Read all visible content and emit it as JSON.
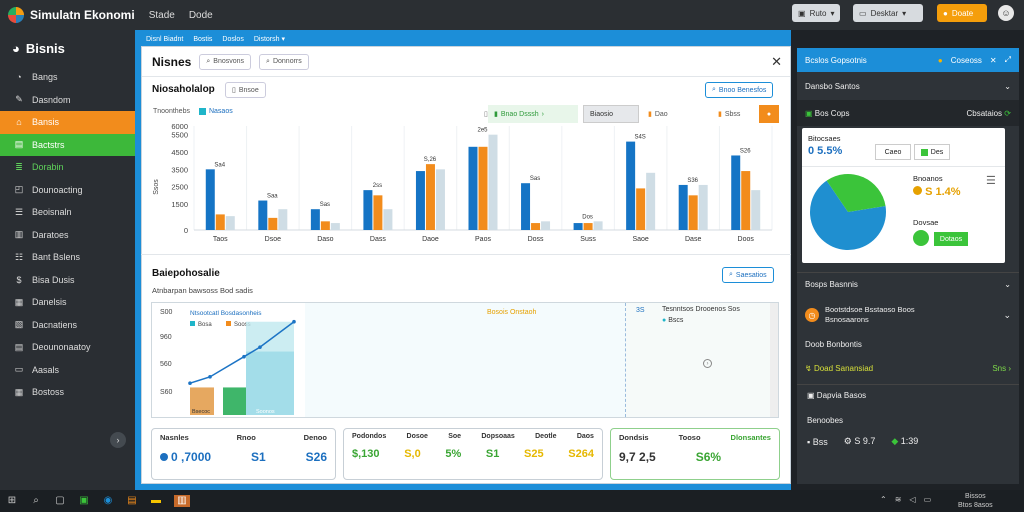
{
  "app": {
    "title": "Simulatn Ekonomi",
    "menus": [
      "Stade",
      "Dode"
    ],
    "top_buttons": [
      {
        "label": "Ruto",
        "style": "grey"
      },
      {
        "label": "Desktar",
        "style": "grey"
      },
      {
        "label": "Doate",
        "style": "orange"
      }
    ],
    "user_icon": "user-icon"
  },
  "sidebar": {
    "brand": "Bisnis",
    "items": [
      {
        "label": "Bangs",
        "icon": "gauge-icon",
        "glyph": "◔",
        "state": "normal"
      },
      {
        "label": "Dasndom",
        "icon": "pen-icon",
        "glyph": "✎",
        "state": "normal"
      },
      {
        "label": "Bansis",
        "icon": "home-icon",
        "glyph": "⌂",
        "state": "orange"
      },
      {
        "label": "Bactstrs",
        "icon": "chart-icon",
        "glyph": "▤",
        "state": "green"
      },
      {
        "label": "Dorabin",
        "icon": "layers-icon",
        "glyph": "≣",
        "state": "green-text"
      },
      {
        "label": "Dounoacting",
        "icon": "folder-icon",
        "glyph": "◰",
        "state": "normal"
      },
      {
        "label": "Beoisnaln",
        "icon": "doc-icon",
        "glyph": "☰",
        "state": "normal"
      },
      {
        "label": "Daratoes",
        "icon": "chart-icon",
        "glyph": "▥",
        "state": "normal"
      },
      {
        "label": "Bant Bslens",
        "icon": "list-icon",
        "glyph": "☷",
        "state": "normal"
      },
      {
        "label": "Bisa Dusis",
        "icon": "dollar-icon",
        "glyph": "$",
        "state": "normal"
      },
      {
        "label": "Danelsis",
        "icon": "grid-icon",
        "glyph": "▦",
        "state": "normal"
      },
      {
        "label": "Dacnatiens",
        "icon": "file-icon",
        "glyph": "▧",
        "state": "normal"
      },
      {
        "label": "Deounonaatoy",
        "icon": "calendar-icon",
        "glyph": "▤",
        "state": "normal"
      },
      {
        "label": "Aasals",
        "icon": "monitor-icon",
        "glyph": "▭",
        "state": "normal"
      },
      {
        "label": "Bostoss",
        "icon": "table-icon",
        "glyph": "▦",
        "state": "normal"
      }
    ]
  },
  "main": {
    "breadcrumb": [
      "Disnl Biadnt",
      "Bostis",
      "Doslos",
      "Distorsh"
    ],
    "window_title": "Nisnes",
    "header_pills": [
      "Bnosvons",
      "Donnorrs"
    ],
    "section1": {
      "title": "Niosaholalop",
      "pill": "Bnsoe",
      "right_button": "Bnoo Benesfos",
      "legend_label": "Tnoonthebs",
      "toolbar_items": [
        "Bnao Dsssh",
        "Biaosio",
        "Dao",
        "Sbss"
      ]
    },
    "section2": {
      "title": "Baiepohosalie",
      "subtitle": "Atnbarpan bawsoss Bod sadis",
      "right_button": "Saesatios",
      "chart_title": "Ntsootcatl Bosdasonheis",
      "chart_legend": [
        "Bosa",
        "Sooss"
      ],
      "mid_label": "Bosois Onstaoh",
      "right_label": "Tesnntsos Drooenos Sos",
      "right_legend": "Bscs",
      "right_y": "3S",
      "y_ticks": [
        "S0S",
        "S50",
        "S80",
        "S08"
      ]
    },
    "stat_cards": [
      {
        "labels": [
          "Nasnles",
          "Rnoo",
          "Denoo"
        ],
        "values": [
          "0 ,7000",
          "S1",
          "S26"
        ],
        "colors": [
          "#1c6fbf",
          "#1c6fbf",
          "#1c6fbf"
        ],
        "dot": "#1c6fbf"
      },
      {
        "labels": [
          "Podondos",
          "Dosoe",
          "Soe",
          "Dopsoaas",
          "Deotle",
          "Daos"
        ],
        "values": [
          "$,130",
          "S,0",
          "5%",
          "S1",
          "S25",
          "S264"
        ],
        "colors": [
          "#3aa533",
          "#e6b800",
          "#3aa533",
          "#3aa533",
          "#e6b800",
          "#e6b800"
        ]
      },
      {
        "labels": [
          "Dondsis",
          "Tooso",
          "Dlonsantes"
        ],
        "values": [
          "9,7 2,5",
          "S6%"
        ],
        "colors": [
          "#333333",
          "#3aa533"
        ]
      }
    ]
  },
  "chart_data": {
    "type": "bar",
    "categories": [
      "Taos",
      "Dsoe",
      "Daso",
      "Dass",
      "Daoe",
      "Paos",
      "Doss",
      "Suss",
      "Saoe",
      "Dase",
      "Doos"
    ],
    "y_ticks": [
      "0",
      "1500",
      "2500",
      "3500",
      "4500",
      "5500",
      "6000"
    ],
    "ylabel": "Ssos",
    "ylim": [
      0,
      6000
    ],
    "series": [
      {
        "name": "Nasaos",
        "color": "#1574c5",
        "values": [
          3500,
          1700,
          1200,
          2300,
          3400,
          4800,
          2700,
          400,
          5100,
          2600,
          4300
        ]
      },
      {
        "name": "Srnoeo",
        "color": "#f28c1c",
        "values": [
          900,
          700,
          500,
          2000,
          3800,
          4800,
          400,
          400,
          2400,
          2000,
          3400
        ]
      },
      {
        "name": "Baeo",
        "color": "#cfdde5",
        "values": [
          800,
          1200,
          400,
          1200,
          3500,
          5500,
          500,
          500,
          3300,
          2600,
          2300
        ]
      }
    ],
    "data_labels": [
      "Sa4",
      "Saa",
      "Sas",
      "2ss",
      "S,26",
      "2e5",
      "Sas",
      "Dos",
      "S4S",
      "S36",
      "S26"
    ]
  },
  "line_chart": {
    "type": "area",
    "y_ticks": [
      "S00",
      "960",
      "560",
      "S60"
    ],
    "line_points": [
      [
        0,
        30
      ],
      [
        1,
        36
      ],
      [
        2,
        55
      ],
      [
        3,
        64
      ],
      [
        4,
        88
      ]
    ],
    "bars": [
      {
        "color": "#e6a860",
        "value": 26
      },
      {
        "color": "#3fb66a",
        "value": 26
      }
    ],
    "bar_labels": [
      "Bsecoc",
      "Soonos"
    ]
  },
  "right_panel": {
    "header": "Bcslos Gopsotnis",
    "header_right": "Coseoss",
    "section_head": "Dansbo Santos",
    "sub_row_left": "Bos Cops",
    "sub_row_right": "Cbsataios",
    "card": {
      "title": "Bitocsaes",
      "value": "0 5.5%",
      "btn1": "Caeo",
      "btn2": "Des",
      "legend1_label": "Bnoanos",
      "legend1_value": "S 1.4%",
      "legend2_label": "Dovsae",
      "legend2_button": "Dotaos"
    },
    "pie_data": {
      "type": "pie",
      "values": [
        68,
        32
      ],
      "colors": [
        "#1f8fd0",
        "#3bc43a"
      ]
    },
    "section2_head": "Bosps Basnnis",
    "list_item_title": "Bootstdsoe Bsstaoso Boos",
    "list_item_sub": "Bsnosaarons",
    "label_row": "Doob Bonbontis",
    "green_row_left": "Doad Sanansiad",
    "green_row_right": "Sns",
    "calendar_row": "Dapvia Basos",
    "footer_title": "Benoobes",
    "footer_items": [
      "Bss",
      "S 9.7",
      "1:39"
    ]
  },
  "taskbar": {
    "time": "Bissos",
    "date": "Btos 8asos"
  }
}
